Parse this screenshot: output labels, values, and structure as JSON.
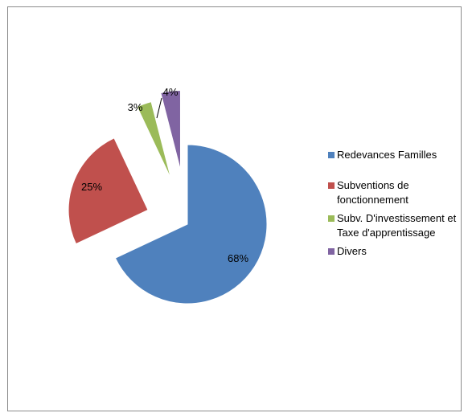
{
  "chart_data": {
    "type": "pie",
    "exploded": true,
    "start_angle_deg": 0,
    "direction": "clockwise",
    "legend_position": "right",
    "categories": [
      "Redevances Familles",
      "Subventions de fonctionnement",
      "Subv. D'investissement et Taxe d'apprentissage",
      "Divers"
    ],
    "values": [
      68,
      25,
      3,
      4
    ],
    "labels": [
      "68%",
      "25%",
      "3%",
      "4%"
    ],
    "colors": [
      "#4f81bd",
      "#c0504d",
      "#9bbb59",
      "#8064a2"
    ]
  },
  "legend": {
    "items": [
      {
        "label": "Redevances Familles"
      },
      {
        "label": "Subventions de fonctionnement"
      },
      {
        "label": "Subv. D'investissement et Taxe d'apprentissage"
      },
      {
        "label": "Divers"
      }
    ]
  }
}
